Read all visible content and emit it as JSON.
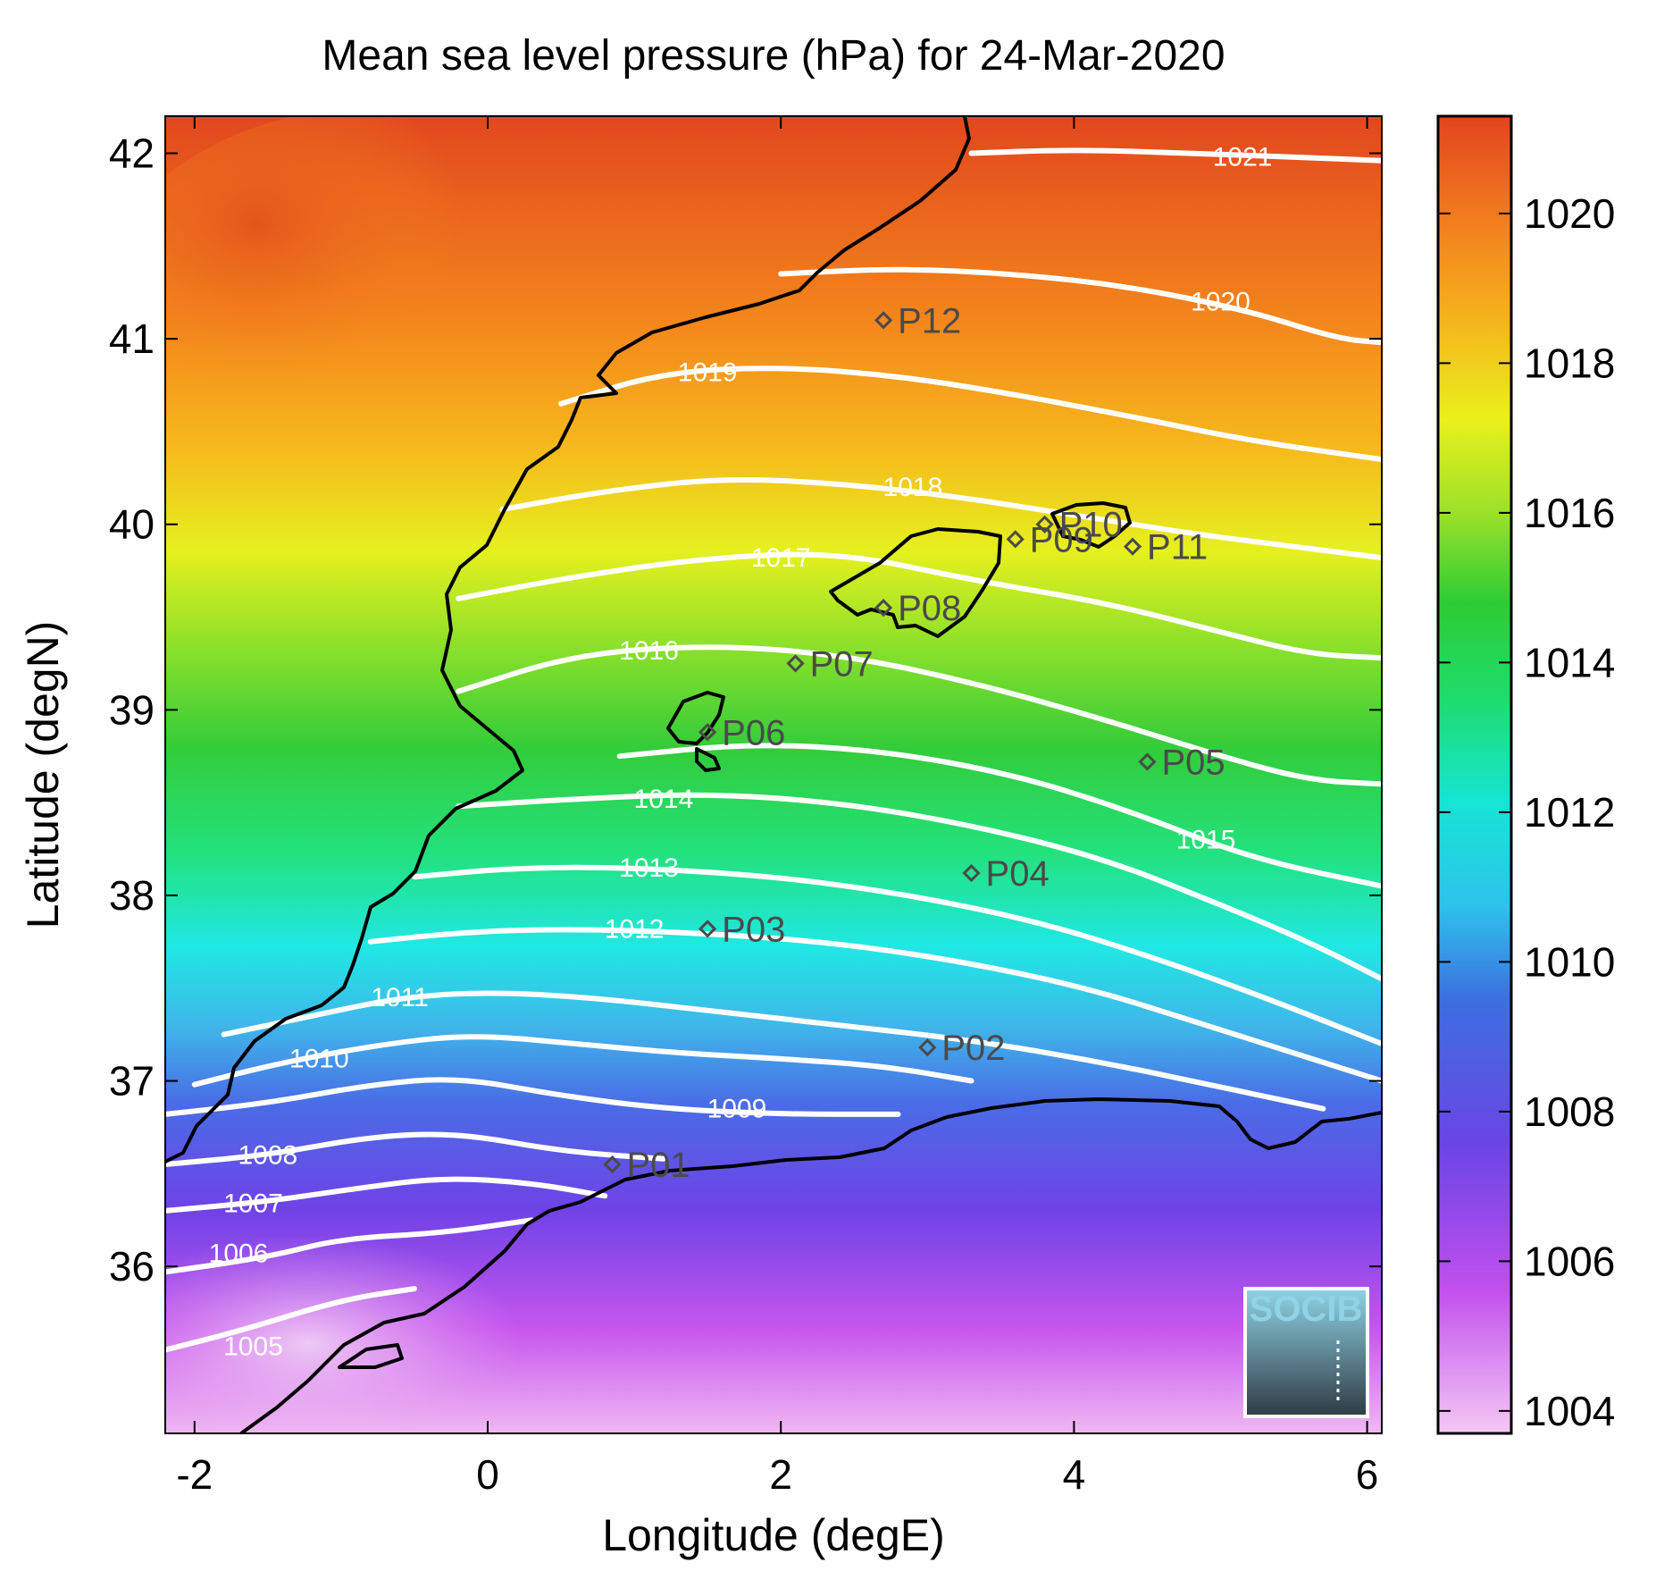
{
  "title": "Mean sea level pressure (hPa) for 24-Mar-2020",
  "logo": {
    "text": "SOCIB"
  },
  "chart_data": {
    "type": "heatmap",
    "title": "Mean sea level pressure (hPa) for 24-Mar-2020",
    "xlabel": "Longitude (degE)",
    "ylabel": "Latitude (degN)",
    "xlim": [
      -2.2,
      6.1
    ],
    "ylim": [
      35.1,
      42.2
    ],
    "xticks": [
      -2,
      0,
      2,
      4,
      6
    ],
    "xtick_labels": [
      "-2",
      "0",
      "2",
      "4",
      "6"
    ],
    "yticks": [
      36,
      37,
      38,
      39,
      40,
      41,
      42
    ],
    "ytick_labels": [
      "36",
      "37",
      "38",
      "39",
      "40",
      "41",
      "42"
    ],
    "colorbar": {
      "range": [
        1003.7,
        1021.3
      ],
      "ticks": [
        1004,
        1006,
        1008,
        1010,
        1012,
        1014,
        1016,
        1018,
        1020
      ],
      "tick_labels": [
        "1004",
        "1006",
        "1008",
        "1010",
        "1012",
        "1014",
        "1016",
        "1018",
        "1020"
      ]
    },
    "contours": [
      {
        "level": 1005,
        "label": "1005",
        "points": [
          [
            -2.2,
            35.55
          ],
          [
            -1.7,
            35.65
          ],
          [
            -1.0,
            35.82
          ],
          [
            -0.5,
            35.88
          ]
        ],
        "label_at": [
          -1.6,
          35.57
        ]
      },
      {
        "level": 1006,
        "label": "1006",
        "points": [
          [
            -2.2,
            35.97
          ],
          [
            -1.5,
            36.05
          ],
          [
            -1.0,
            36.15
          ],
          [
            -0.3,
            36.18
          ],
          [
            0.3,
            36.25
          ]
        ],
        "label_at": [
          -1.7,
          36.07
        ]
      },
      {
        "level": 1007,
        "label": "1007",
        "points": [
          [
            -2.2,
            36.3
          ],
          [
            -1.5,
            36.35
          ],
          [
            -0.9,
            36.42
          ],
          [
            -0.3,
            36.48
          ],
          [
            0.3,
            36.45
          ],
          [
            0.8,
            36.38
          ]
        ],
        "label_at": [
          -1.6,
          36.34
        ]
      },
      {
        "level": 1008,
        "label": "1008",
        "points": [
          [
            -2.2,
            36.55
          ],
          [
            -1.5,
            36.6
          ],
          [
            -0.8,
            36.7
          ],
          [
            -0.2,
            36.72
          ],
          [
            0.5,
            36.62
          ],
          [
            1.2,
            36.58
          ]
        ],
        "label_at": [
          -1.5,
          36.6
        ]
      },
      {
        "level": 1009,
        "label": "1009",
        "points": [
          [
            -2.2,
            36.82
          ],
          [
            -1.5,
            36.88
          ],
          [
            -0.8,
            36.98
          ],
          [
            -0.2,
            37.02
          ],
          [
            0.5,
            36.92
          ],
          [
            1.2,
            36.85
          ],
          [
            2.0,
            36.82
          ],
          [
            2.8,
            36.82
          ]
        ],
        "label_at": [
          1.7,
          36.85
        ]
      },
      {
        "level": 1010,
        "label": "1010",
        "points": [
          [
            -2.0,
            36.98
          ],
          [
            -1.4,
            37.1
          ],
          [
            -0.7,
            37.2
          ],
          [
            -0.1,
            37.25
          ],
          [
            0.6,
            37.2
          ],
          [
            1.3,
            37.15
          ],
          [
            2.0,
            37.12
          ],
          [
            2.7,
            37.08
          ],
          [
            3.3,
            37.0
          ]
        ],
        "label_at": [
          -1.15,
          37.12
        ]
      },
      {
        "level": 1011,
        "label": "1011",
        "points": [
          [
            -1.8,
            37.25
          ],
          [
            -1.2,
            37.35
          ],
          [
            -0.6,
            37.45
          ],
          [
            0.0,
            37.48
          ],
          [
            0.7,
            37.45
          ],
          [
            1.5,
            37.38
          ],
          [
            2.4,
            37.3
          ],
          [
            3.3,
            37.22
          ],
          [
            4.2,
            37.1
          ],
          [
            5.1,
            36.95
          ],
          [
            5.7,
            36.85
          ]
        ],
        "label_at": [
          -0.6,
          37.45
        ]
      },
      {
        "level": 1012,
        "label": "1012",
        "points": [
          [
            -0.8,
            37.75
          ],
          [
            -0.2,
            37.8
          ],
          [
            0.5,
            37.82
          ],
          [
            1.4,
            37.8
          ],
          [
            2.3,
            37.75
          ],
          [
            3.2,
            37.65
          ],
          [
            4.1,
            37.5
          ],
          [
            4.9,
            37.3
          ],
          [
            5.5,
            37.15
          ],
          [
            6.1,
            37.0
          ]
        ],
        "label_at": [
          1.0,
          37.82
        ]
      },
      {
        "level": 1013,
        "label": "1013",
        "points": [
          [
            -0.5,
            38.1
          ],
          [
            0.2,
            38.15
          ],
          [
            1.0,
            38.15
          ],
          [
            2.0,
            38.1
          ],
          [
            2.9,
            38.0
          ],
          [
            3.8,
            37.85
          ],
          [
            4.6,
            37.65
          ],
          [
            5.3,
            37.45
          ],
          [
            6.1,
            37.2
          ]
        ],
        "label_at": [
          1.1,
          38.15
        ]
      },
      {
        "level": 1014,
        "label": "1014",
        "points": [
          [
            -0.2,
            38.48
          ],
          [
            0.6,
            38.52
          ],
          [
            1.5,
            38.55
          ],
          [
            2.4,
            38.5
          ],
          [
            3.3,
            38.38
          ],
          [
            4.2,
            38.2
          ],
          [
            5.0,
            37.95
          ],
          [
            5.6,
            37.75
          ],
          [
            6.1,
            37.55
          ]
        ],
        "label_at": [
          1.2,
          38.52
        ]
      },
      {
        "level": 1015,
        "label": "1015",
        "points": [
          [
            0.9,
            38.75
          ],
          [
            1.8,
            38.82
          ],
          [
            2.7,
            38.78
          ],
          [
            3.6,
            38.65
          ],
          [
            4.4,
            38.45
          ],
          [
            5.2,
            38.2
          ],
          [
            6.1,
            38.05
          ]
        ],
        "label_at": [
          4.9,
          38.3
        ]
      },
      {
        "level": 1016,
        "label": "1016",
        "points": [
          [
            -0.2,
            39.1
          ],
          [
            0.6,
            39.3
          ],
          [
            1.5,
            39.35
          ],
          [
            2.4,
            39.3
          ],
          [
            3.3,
            39.15
          ],
          [
            4.2,
            38.95
          ],
          [
            5.0,
            38.75
          ],
          [
            5.6,
            38.62
          ],
          [
            6.1,
            38.6
          ]
        ],
        "label_at": [
          1.1,
          39.32
        ]
      },
      {
        "level": 1017,
        "label": "1017",
        "points": [
          [
            -0.2,
            39.6
          ],
          [
            0.6,
            39.72
          ],
          [
            1.5,
            39.82
          ],
          [
            2.4,
            39.85
          ],
          [
            3.3,
            39.7
          ],
          [
            4.2,
            39.58
          ],
          [
            5.0,
            39.42
          ],
          [
            5.6,
            39.3
          ],
          [
            6.1,
            39.28
          ]
        ],
        "label_at": [
          2.0,
          39.82
        ]
      },
      {
        "level": 1018,
        "label": "1018",
        "points": [
          [
            0.1,
            40.08
          ],
          [
            0.8,
            40.18
          ],
          [
            1.6,
            40.25
          ],
          [
            2.4,
            40.22
          ],
          [
            3.2,
            40.15
          ],
          [
            4.0,
            40.05
          ],
          [
            4.8,
            39.95
          ],
          [
            5.5,
            39.88
          ],
          [
            6.1,
            39.82
          ]
        ],
        "label_at": [
          2.9,
          40.2
        ]
      },
      {
        "level": 1019,
        "label": "1019",
        "points": [
          [
            0.5,
            40.65
          ],
          [
            1.2,
            40.82
          ],
          [
            2.0,
            40.85
          ],
          [
            2.8,
            40.8
          ],
          [
            3.6,
            40.7
          ],
          [
            4.4,
            40.58
          ],
          [
            5.2,
            40.45
          ],
          [
            6.1,
            40.35
          ]
        ],
        "label_at": [
          1.5,
          40.82
        ]
      },
      {
        "level": 1020,
        "label": "1020",
        "points": [
          [
            2.0,
            41.35
          ],
          [
            2.8,
            41.38
          ],
          [
            3.6,
            41.35
          ],
          [
            4.4,
            41.28
          ],
          [
            5.2,
            41.15
          ],
          [
            5.8,
            41.0
          ],
          [
            6.1,
            40.98
          ]
        ],
        "label_at": [
          5.0,
          41.2
        ]
      },
      {
        "level": 1021,
        "label": "1021",
        "points": [
          [
            3.3,
            42.0
          ],
          [
            4.0,
            42.02
          ],
          [
            4.8,
            42.0
          ],
          [
            5.5,
            41.98
          ],
          [
            6.1,
            41.96
          ]
        ],
        "label_at": [
          5.15,
          41.98
        ]
      }
    ],
    "stations": [
      {
        "name": "P01",
        "lon": 0.85,
        "lat": 36.55
      },
      {
        "name": "P02",
        "lon": 3.0,
        "lat": 37.18
      },
      {
        "name": "P03",
        "lon": 1.5,
        "lat": 37.82
      },
      {
        "name": "P04",
        "lon": 3.3,
        "lat": 38.12
      },
      {
        "name": "P05",
        "lon": 4.5,
        "lat": 38.72
      },
      {
        "name": "P06",
        "lon": 1.5,
        "lat": 38.88
      },
      {
        "name": "P07",
        "lon": 2.1,
        "lat": 39.25
      },
      {
        "name": "P08",
        "lon": 2.7,
        "lat": 39.55
      },
      {
        "name": "P09",
        "lon": 3.6,
        "lat": 39.92
      },
      {
        "name": "P10",
        "lon": 3.8,
        "lat": 40.0
      },
      {
        "name": "P11",
        "lon": 4.4,
        "lat": 39.88
      },
      {
        "name": "P12",
        "lon": 2.7,
        "lat": 41.1
      }
    ]
  }
}
